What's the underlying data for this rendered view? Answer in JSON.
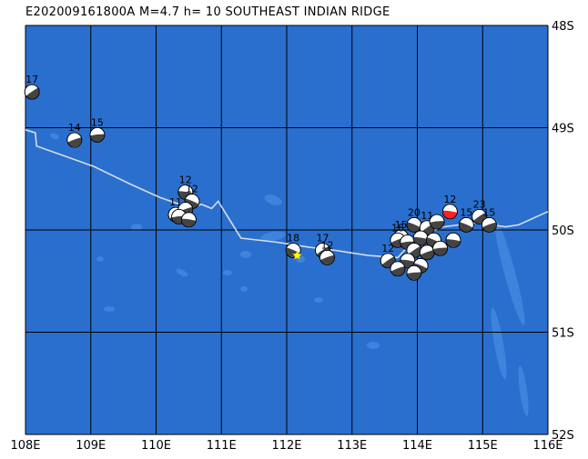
{
  "title": "E202009161800A M=4.7 h= 10 SOUTHEAST INDIAN RIDGE",
  "map": {
    "lon_range": [
      108,
      116
    ],
    "lat_range": [
      -48,
      -52
    ],
    "lon_ticks": [
      "108E",
      "109E",
      "110E",
      "111E",
      "112E",
      "113E",
      "114E",
      "115E",
      "116E"
    ],
    "lat_ticks": [
      "48S",
      "49S",
      "50S",
      "51S",
      "52S"
    ],
    "colors": {
      "ocean": "#2a6fce",
      "shallow": "#3e84dc",
      "grid": "#000000",
      "ridge": "#d7dde4",
      "highlight": "#ff2020",
      "epicenter": "#ffff00"
    }
  },
  "ridge_line": [
    [
      108.0,
      -49.02
    ],
    [
      108.15,
      -49.05
    ],
    [
      108.17,
      -49.18
    ],
    [
      108.7,
      -49.3
    ],
    [
      109.05,
      -49.38
    ],
    [
      109.6,
      -49.55
    ],
    [
      110.05,
      -49.68
    ],
    [
      110.5,
      -49.78
    ],
    [
      110.7,
      -49.75
    ],
    [
      110.85,
      -49.79
    ],
    [
      110.95,
      -49.72
    ],
    [
      111.3,
      -50.08
    ],
    [
      111.85,
      -50.12
    ],
    [
      112.35,
      -50.17
    ],
    [
      112.75,
      -50.2
    ],
    [
      113.25,
      -50.25
    ],
    [
      113.7,
      -50.27
    ],
    [
      114.0,
      -50.06
    ],
    [
      114.4,
      -49.97
    ],
    [
      114.9,
      -49.93
    ],
    [
      115.35,
      -49.97
    ],
    [
      115.55,
      -49.95
    ],
    [
      116.0,
      -49.82
    ]
  ],
  "epicenter": {
    "lon": 112.16,
    "lat": -50.25
  },
  "events": [
    {
      "lon": 108.1,
      "lat": -48.65,
      "label": "17"
    },
    {
      "lon": 108.75,
      "lat": -49.12,
      "label": "14"
    },
    {
      "lon": 109.1,
      "lat": -49.07,
      "label": "15"
    },
    {
      "lon": 110.45,
      "lat": -49.63,
      "label": "12"
    },
    {
      "lon": 110.55,
      "lat": -49.72,
      "label": "12"
    },
    {
      "lon": 110.3,
      "lat": -49.85,
      "label": "11"
    },
    {
      "lon": 110.45,
      "lat": -49.8,
      "label": ""
    },
    {
      "lon": 110.35,
      "lat": -49.87,
      "label": ""
    },
    {
      "lon": 110.5,
      "lat": -49.9,
      "label": ""
    },
    {
      "lon": 112.1,
      "lat": -50.2,
      "label": "18"
    },
    {
      "lon": 112.55,
      "lat": -50.2,
      "label": "17"
    },
    {
      "lon": 112.62,
      "lat": -50.27,
      "label": "12"
    },
    {
      "lon": 113.75,
      "lat": -50.07,
      "label": "15"
    },
    {
      "lon": 114.5,
      "lat": -49.82,
      "label": "12",
      "highlight": true
    },
    {
      "lon": 113.95,
      "lat": -49.95,
      "label": "20"
    },
    {
      "lon": 114.15,
      "lat": -49.98,
      "label": "11"
    },
    {
      "lon": 113.7,
      "lat": -50.1,
      "label": "18"
    },
    {
      "lon": 113.85,
      "lat": -50.12,
      "label": ""
    },
    {
      "lon": 114.05,
      "lat": -50.08,
      "label": ""
    },
    {
      "lon": 114.25,
      "lat": -50.1,
      "label": ""
    },
    {
      "lon": 113.95,
      "lat": -50.2,
      "label": ""
    },
    {
      "lon": 114.15,
      "lat": -50.22,
      "label": ""
    },
    {
      "lon": 114.35,
      "lat": -50.18,
      "label": ""
    },
    {
      "lon": 113.85,
      "lat": -50.3,
      "label": ""
    },
    {
      "lon": 114.05,
      "lat": -50.35,
      "label": ""
    },
    {
      "lon": 113.55,
      "lat": -50.3,
      "label": "12"
    },
    {
      "lon": 113.7,
      "lat": -50.38,
      "label": ""
    },
    {
      "lon": 113.95,
      "lat": -50.42,
      "label": ""
    },
    {
      "lon": 114.55,
      "lat": -50.1,
      "label": ""
    },
    {
      "lon": 114.75,
      "lat": -49.95,
      "label": "15"
    },
    {
      "lon": 114.95,
      "lat": -49.87,
      "label": "23"
    },
    {
      "lon": 115.1,
      "lat": -49.95,
      "label": "15"
    },
    {
      "lon": 114.3,
      "lat": -49.92,
      "label": ""
    }
  ]
}
